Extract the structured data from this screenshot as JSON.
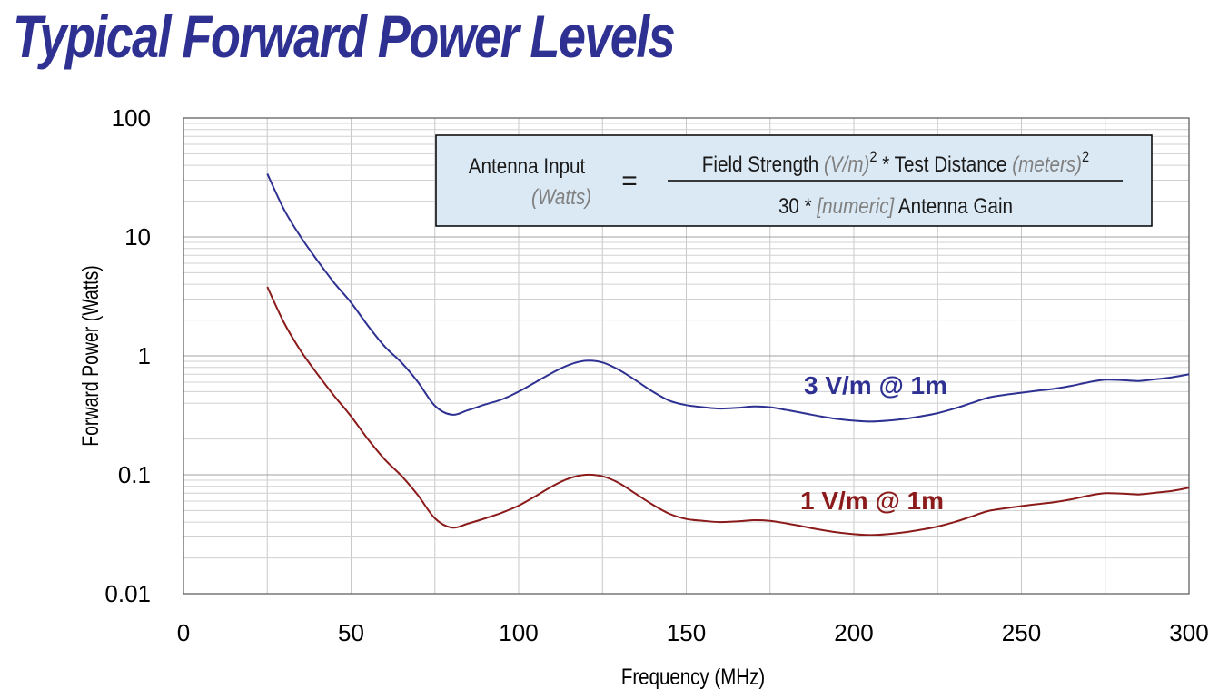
{
  "title": "Typical Forward Power Levels",
  "chart_data": {
    "type": "line",
    "title": "Typical Forward Power Levels",
    "xlabel": "Frequency (MHz)",
    "ylabel": "Forward Power (Watts)",
    "xlim": [
      0,
      300
    ],
    "ylim": [
      0.01,
      100
    ],
    "yscale": "log",
    "grid": true,
    "x_ticks": [
      "0",
      "50",
      "100",
      "150",
      "200",
      "250",
      "300"
    ],
    "y_ticks": [
      "0.01",
      "0.1",
      "1",
      "10",
      "100"
    ],
    "series": [
      {
        "name": "3 V/m @ 1m",
        "color": "#2e3192",
        "x": [
          25,
          30,
          35,
          40,
          45,
          50,
          55,
          60,
          65,
          70,
          75,
          80,
          85,
          90,
          95,
          100,
          105,
          110,
          115,
          120,
          125,
          130,
          135,
          140,
          145,
          150,
          155,
          160,
          165,
          170,
          175,
          180,
          185,
          190,
          195,
          200,
          205,
          210,
          215,
          220,
          225,
          230,
          235,
          240,
          245,
          250,
          255,
          260,
          265,
          270,
          275,
          280,
          285,
          290,
          295,
          300
        ],
        "y": [
          34,
          17,
          10,
          6.3,
          4.1,
          2.8,
          1.8,
          1.2,
          0.88,
          0.6,
          0.38,
          0.32,
          0.35,
          0.39,
          0.43,
          0.5,
          0.6,
          0.72,
          0.84,
          0.91,
          0.88,
          0.76,
          0.62,
          0.5,
          0.42,
          0.385,
          0.37,
          0.36,
          0.365,
          0.375,
          0.37,
          0.35,
          0.33,
          0.31,
          0.295,
          0.285,
          0.28,
          0.285,
          0.295,
          0.31,
          0.33,
          0.36,
          0.4,
          0.445,
          0.47,
          0.49,
          0.51,
          0.53,
          0.56,
          0.6,
          0.63,
          0.625,
          0.615,
          0.635,
          0.66,
          0.7
        ]
      },
      {
        "name": "1 V/m @ 1m",
        "color": "#8b1a1a",
        "x": [
          25,
          30,
          35,
          40,
          45,
          50,
          55,
          60,
          65,
          70,
          75,
          80,
          85,
          90,
          95,
          100,
          105,
          110,
          115,
          120,
          125,
          130,
          135,
          140,
          145,
          150,
          155,
          160,
          165,
          170,
          175,
          180,
          185,
          190,
          195,
          200,
          205,
          210,
          215,
          220,
          225,
          230,
          235,
          240,
          245,
          250,
          255,
          260,
          265,
          270,
          275,
          280,
          285,
          290,
          295,
          300
        ],
        "y": [
          3.8,
          1.9,
          1.1,
          0.7,
          0.46,
          0.31,
          0.2,
          0.135,
          0.098,
          0.067,
          0.043,
          0.036,
          0.039,
          0.043,
          0.048,
          0.055,
          0.066,
          0.08,
          0.093,
          0.1,
          0.097,
          0.085,
          0.069,
          0.056,
          0.047,
          0.0425,
          0.041,
          0.04,
          0.0405,
          0.0415,
          0.041,
          0.039,
          0.0367,
          0.0345,
          0.0328,
          0.0317,
          0.0311,
          0.0317,
          0.0328,
          0.0345,
          0.0367,
          0.04,
          0.0445,
          0.0495,
          0.0522,
          0.0545,
          0.0567,
          0.0589,
          0.0622,
          0.0667,
          0.07,
          0.0695,
          0.0683,
          0.0706,
          0.0733,
          0.0778
        ]
      }
    ]
  },
  "equation": {
    "lhs_main": "Antenna Input",
    "lhs_sub": "(Watts)",
    "equals": "=",
    "num_a": "Field Strength ",
    "num_a_unit": "(V/m)",
    "num_exp1": "2",
    "num_b": " * Test Distance ",
    "num_b_unit": "(meters)",
    "num_exp2": "2",
    "den_a": "30 * ",
    "den_unit": "[numeric]",
    "den_b": " Antenna Gain"
  }
}
